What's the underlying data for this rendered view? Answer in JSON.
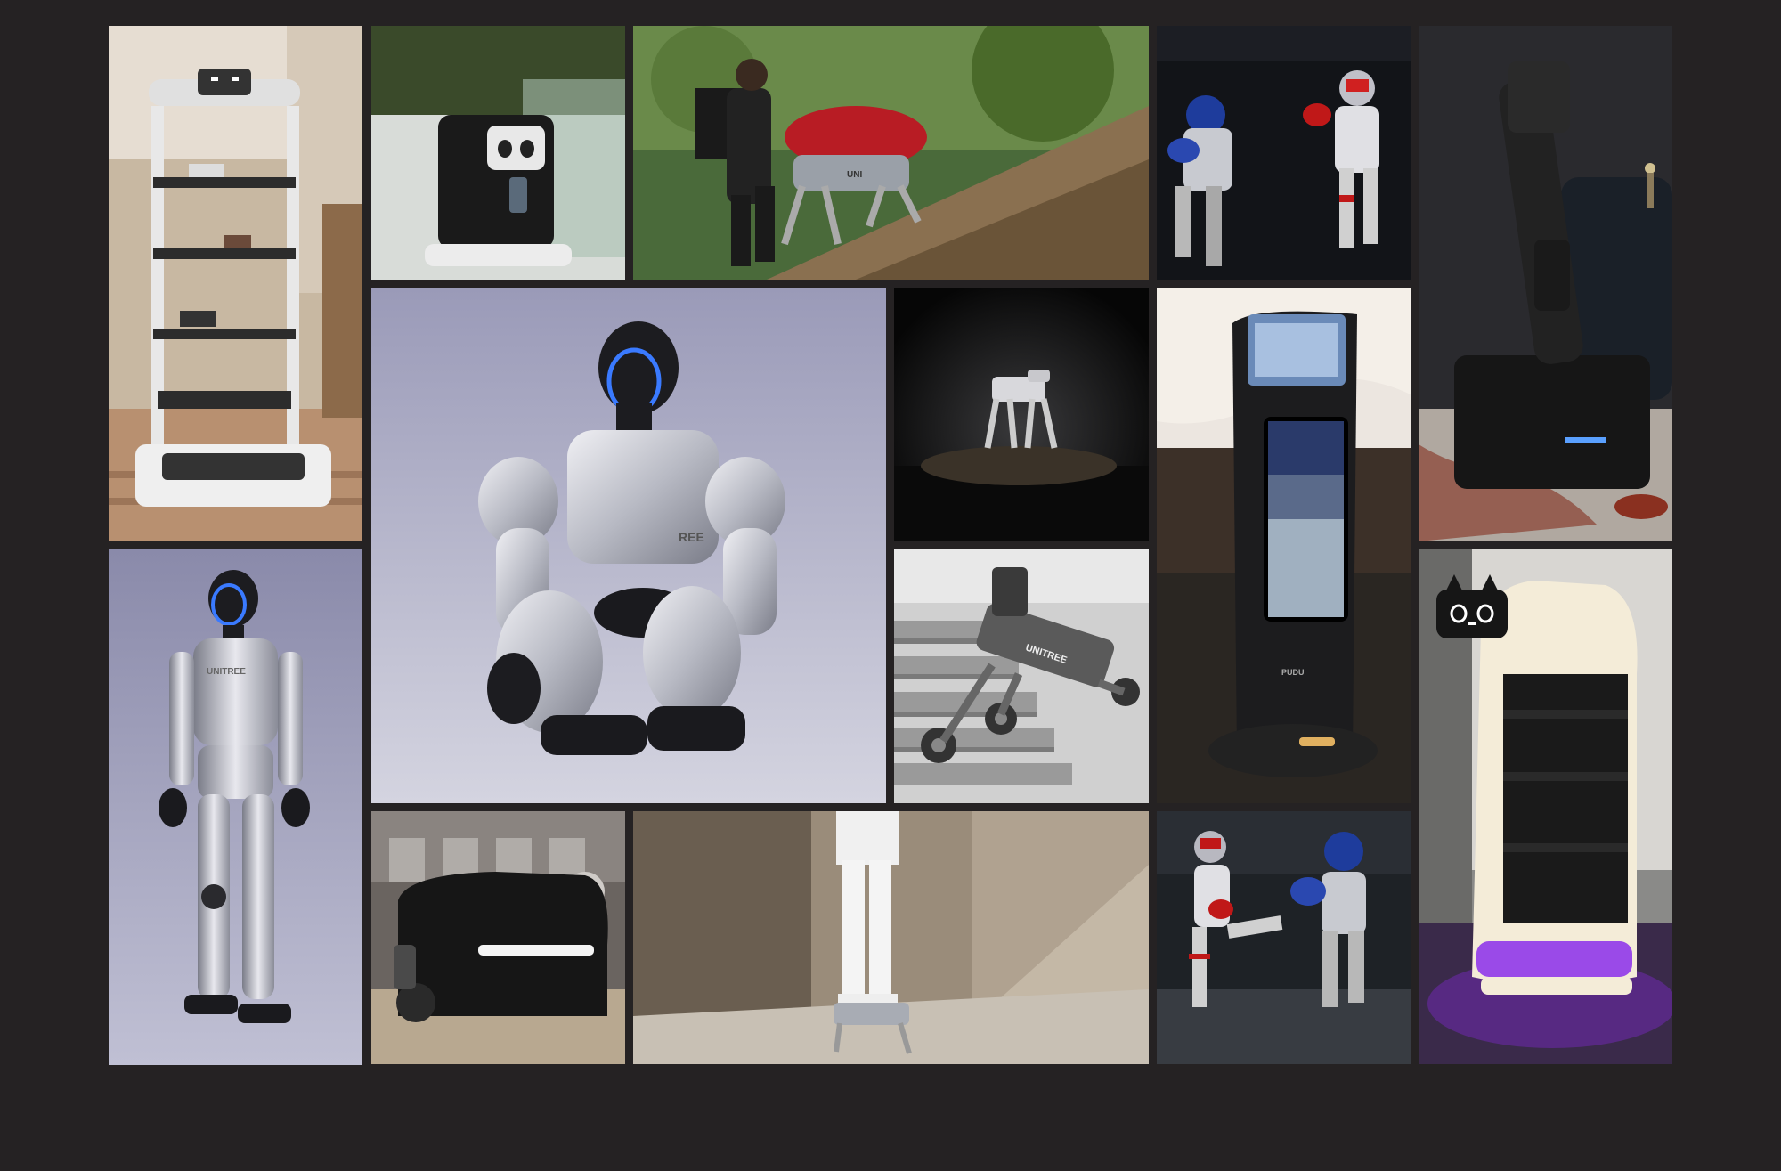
{
  "gallery": {
    "background_color": "#252223",
    "tiles": [
      {
        "id": "tile-1",
        "subject": "white delivery robot with shelves in restaurant"
      },
      {
        "id": "tile-2",
        "subject": "black cube delivery robot with face screen in corridor"
      },
      {
        "id": "tile-3",
        "subject": "hiker with quadruped robot carrying red duffel bag uphill"
      },
      {
        "id": "tile-4",
        "subject": "two humanoid robots boxing"
      },
      {
        "id": "tile-5",
        "subject": "black vertical robot with arm on base"
      },
      {
        "id": "tile-6",
        "subject": "silver humanoid robot kneeling with glowing visor"
      },
      {
        "id": "tile-7",
        "subject": "small quadruped robot on rock in dark"
      },
      {
        "id": "tile-8",
        "subject": "black kiosk robot with screen display"
      },
      {
        "id": "tile-9",
        "subject": "wheeled quadruped robot with lidar climbing stairs"
      },
      {
        "id": "tile-10",
        "subject": "standing silver humanoid robot with glowing visor"
      },
      {
        "id": "tile-11",
        "subject": "black wheeled cleaning robot with light bar on sand"
      },
      {
        "id": "tile-12",
        "subject": "person standing on quadruped robot in canyon"
      },
      {
        "id": "tile-13",
        "subject": "two humanoid robots kicking in boxing match"
      },
      {
        "id": "tile-14",
        "subject": "white cat-faced delivery robot with purple glow"
      }
    ],
    "brand_marks": {
      "tile-3": "UNI",
      "tile-6": "REE",
      "tile-9": "UNITREE",
      "tile-10": "UNITREE",
      "tile-8": "PUDU"
    }
  }
}
